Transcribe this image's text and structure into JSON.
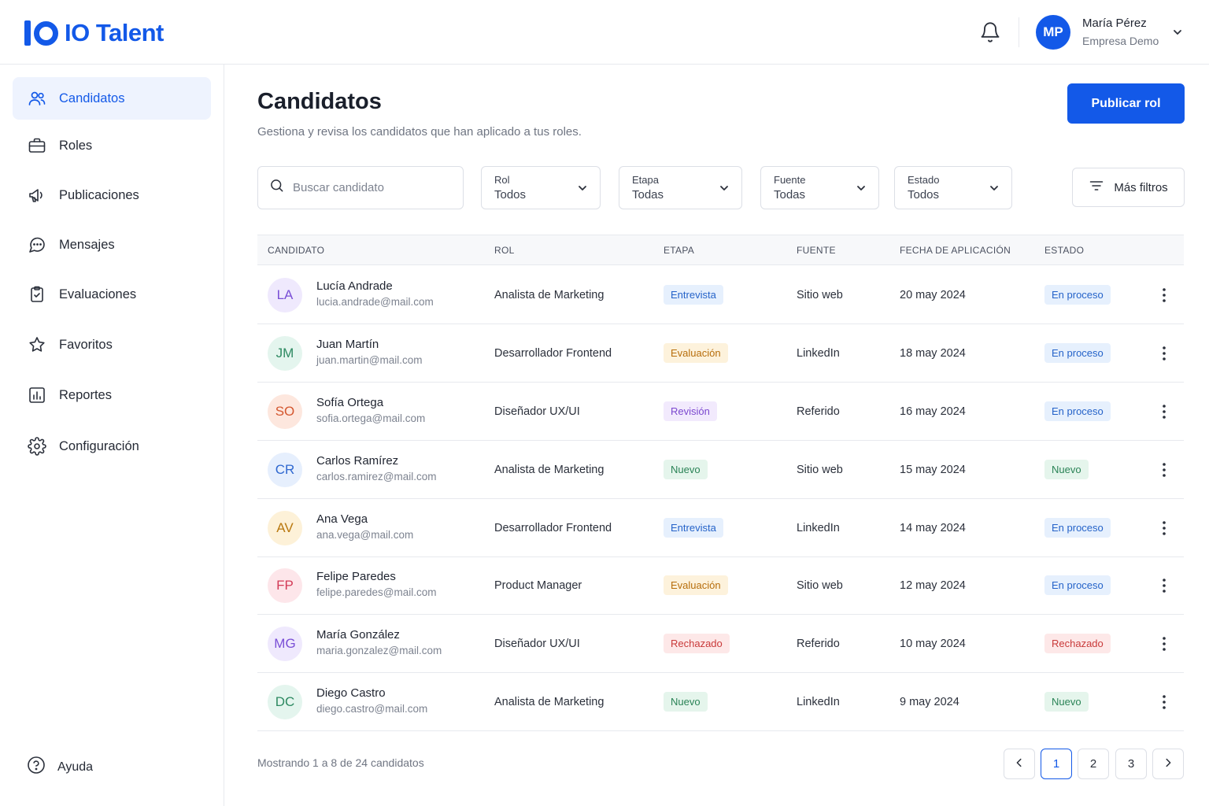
{
  "brand": {
    "name": "IO Talent",
    "color": "#1359e8"
  },
  "user": {
    "initials": "MP",
    "name": "María Pérez",
    "company": "Empresa Demo"
  },
  "sidebar": {
    "items": [
      {
        "label": "Candidatos",
        "icon": "users-icon",
        "active": true
      },
      {
        "label": "Roles",
        "icon": "briefcase-icon"
      },
      {
        "label": "Publicaciones",
        "icon": "megaphone-icon"
      },
      {
        "label": "Mensajes",
        "icon": "chat-bubble-icon"
      },
      {
        "label": "Evaluaciones",
        "icon": "clipboard-check-icon"
      },
      {
        "label": "Favoritos",
        "icon": "star-icon"
      },
      {
        "label": "Reportes",
        "icon": "bar-chart-icon"
      },
      {
        "label": "Configuración",
        "icon": "gear-icon"
      }
    ],
    "help_label": "Ayuda"
  },
  "page": {
    "title": "Candidatos",
    "subtitle": "Gestiona y revisa los candidatos que han aplicado a tus roles.",
    "primary_button": "Publicar rol"
  },
  "search": {
    "placeholder": "Buscar candidato"
  },
  "filters": [
    {
      "label": "Rol",
      "value": "Todos"
    },
    {
      "label": "Etapa",
      "value": "Todas"
    },
    {
      "label": "Fuente",
      "value": "Todas"
    },
    {
      "label": "Estado",
      "value": "Todos"
    }
  ],
  "more_filters_label": "Más filtros",
  "table": {
    "headers": [
      "CANDIDATO",
      "ROL",
      "ETAPA",
      "FUENTE",
      "FECHA DE APLICACIÓN",
      "ESTADO"
    ],
    "rows": [
      {
        "initials": "LA",
        "name": "Lucía Andrade",
        "email": "lucia.andrade@mail.com",
        "role": "Analista de Marketing",
        "stage": "Entrevista",
        "source": "Sitio web",
        "date": "20 may 2024",
        "status": "En proceso"
      },
      {
        "initials": "JM",
        "name": "Juan Martín",
        "email": "juan.martin@mail.com",
        "role": "Desarrollador Frontend",
        "stage": "Evaluación",
        "source": "LinkedIn",
        "date": "18 may 2024",
        "status": "En proceso"
      },
      {
        "initials": "SO",
        "name": "Sofía Ortega",
        "email": "sofia.ortega@mail.com",
        "role": "Diseñador UX/UI",
        "stage": "Revisión",
        "source": "Referido",
        "date": "16 may 2024",
        "status": "En proceso"
      },
      {
        "initials": "CR",
        "name": "Carlos Ramírez",
        "email": "carlos.ramirez@mail.com",
        "role": "Analista de Marketing",
        "stage": "Nuevo",
        "source": "Sitio web",
        "date": "15 may 2024",
        "status": "Nuevo"
      },
      {
        "initials": "AV",
        "name": "Ana Vega",
        "email": "ana.vega@mail.com",
        "role": "Desarrollador Frontend",
        "stage": "Entrevista",
        "source": "LinkedIn",
        "date": "14 may 2024",
        "status": "En proceso"
      },
      {
        "initials": "FP",
        "name": "Felipe Paredes",
        "email": "felipe.paredes@mail.com",
        "role": "Product Manager",
        "stage": "Evaluación",
        "source": "Sitio web",
        "date": "12 may 2024",
        "status": "En proceso"
      },
      {
        "initials": "MG",
        "name": "María González",
        "email": "maria.gonzalez@mail.com",
        "role": "Diseñador UX/UI",
        "stage": "Rechazado",
        "source": "Referido",
        "date": "10 may 2024",
        "status": "Rechazado"
      },
      {
        "initials": "DC",
        "name": "Diego Castro",
        "email": "diego.castro@mail.com",
        "role": "Analista de Marketing",
        "stage": "Nuevo",
        "source": "LinkedIn",
        "date": "9 may 2024",
        "status": "Nuevo"
      }
    ]
  },
  "avatar_colors": [
    {
      "bg": "#efe9fd",
      "fg": "#7a4fd6"
    },
    {
      "bg": "#e4f5ee",
      "fg": "#2e8a62"
    },
    {
      "bg": "#fde7de",
      "fg": "#d4572f"
    },
    {
      "bg": "#e6effd",
      "fg": "#2f68d0"
    },
    {
      "bg": "#fdf1d8",
      "fg": "#b9780f"
    },
    {
      "bg": "#fde6ea",
      "fg": "#d33b57"
    },
    {
      "bg": "#efe9fd",
      "fg": "#7a4fd6"
    },
    {
      "bg": "#e4f5ee",
      "fg": "#2e8a62"
    }
  ],
  "pill_colors": {
    "Entrevista": {
      "bg": "#e6f0fd",
      "fg": "#2563c9"
    },
    "Evaluación": {
      "bg": "#fdf2dc",
      "fg": "#b76e0c"
    },
    "Revisión": {
      "bg": "#f2eafd",
      "fg": "#7b48cf"
    },
    "Nuevo": {
      "bg": "#e5f5ec",
      "fg": "#2a8356"
    },
    "Rechazado": {
      "bg": "#fde8e8",
      "fg": "#c93a3a"
    },
    "En proceso": {
      "bg": "#e6f0fd",
      "fg": "#2563c9"
    }
  },
  "pagination": {
    "summary": "Mostrando 1 a 8 de 24 candidatos",
    "pages": [
      "1",
      "2",
      "3"
    ],
    "current": "1"
  }
}
